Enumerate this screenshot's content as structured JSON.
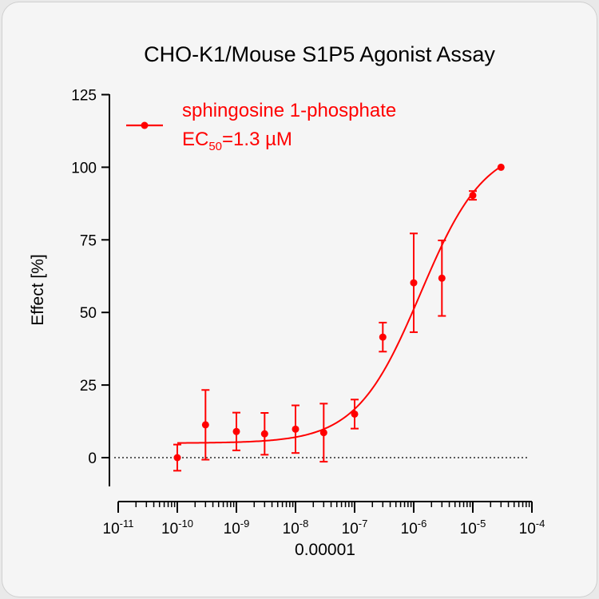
{
  "chart_data": {
    "type": "scatter",
    "title": "CHO-K1/Mouse S1P5 Agonist Assay",
    "xlabel": "0.00001",
    "ylabel": "Effect  [%]",
    "x_scale": "log10",
    "xlim": [
      1e-11,
      0.0001
    ],
    "ylim": [
      -10,
      125
    ],
    "yticks": [
      0,
      25,
      50,
      75,
      100,
      125
    ],
    "xticks": [
      {
        "base": "10",
        "exp": "-11"
      },
      {
        "base": "10",
        "exp": "-10"
      },
      {
        "base": "10",
        "exp": "-9"
      },
      {
        "base": "10",
        "exp": "-8"
      },
      {
        "base": "10",
        "exp": "-7"
      },
      {
        "base": "10",
        "exp": "-6"
      },
      {
        "base": "10",
        "exp": "-5"
      },
      {
        "base": "10",
        "exp": "-4"
      }
    ],
    "baseline": 0,
    "color": "#ff0000",
    "series": [
      {
        "name": "sphingosine 1-phosphate",
        "ec50_label": {
          "prefix": "EC",
          "sub": "50",
          "suffix": "=1.3 µM"
        },
        "points": [
          {
            "x": 1e-10,
            "y": 0,
            "err": 4.5
          },
          {
            "x": 3e-10,
            "y": 11.3,
            "err": 12
          },
          {
            "x": 1e-09,
            "y": 9,
            "err": 6.5
          },
          {
            "x": 3e-09,
            "y": 8.2,
            "err": 7.2
          },
          {
            "x": 1e-08,
            "y": 9.8,
            "err": 8.2
          },
          {
            "x": 3e-08,
            "y": 8.6,
            "err": 10
          },
          {
            "x": 1e-07,
            "y": 15,
            "err": 5
          },
          {
            "x": 3e-07,
            "y": 41.5,
            "err": 5
          },
          {
            "x": 1e-06,
            "y": 60.2,
            "err": 17
          },
          {
            "x": 3e-06,
            "y": 61.8,
            "err": 13
          },
          {
            "x": 1e-05,
            "y": 90.3,
            "err": 1.5
          },
          {
            "x": 3e-05,
            "y": 100,
            "err": 0
          }
        ],
        "fit": {
          "bottom": 5,
          "top": 108,
          "ec50": 1.3e-06,
          "hill": 0.8,
          "x_range": [
            1e-10,
            3e-05
          ]
        }
      }
    ]
  }
}
